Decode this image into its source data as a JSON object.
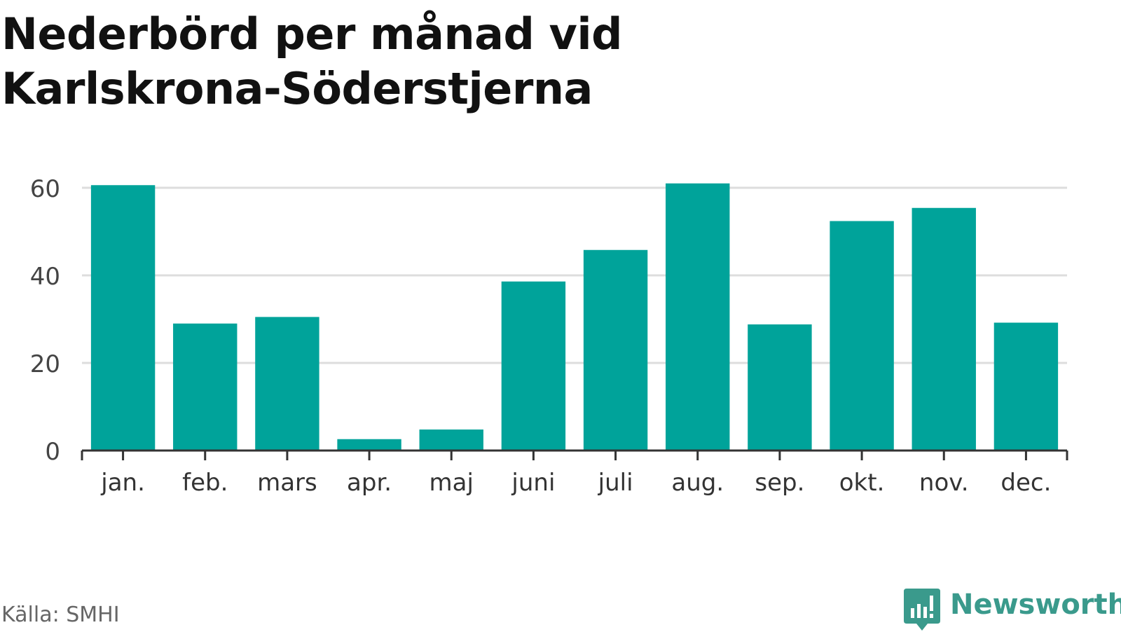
{
  "title_line1": "Nederbörd per månad vid",
  "title_line2": "Karlskrona-Söderstjerna",
  "source": "Källa: SMHI",
  "brand": "Newsworthy",
  "colors": {
    "bar": "#00a39a",
    "grid": "#dddddd",
    "axis": "#333333",
    "brand": "#3a9a8c"
  },
  "chart_data": {
    "type": "bar",
    "categories": [
      "jan.",
      "feb.",
      "mars",
      "apr.",
      "maj",
      "juni",
      "juli",
      "aug.",
      "sep.",
      "okt.",
      "nov.",
      "dec."
    ],
    "values": [
      60.6,
      29.0,
      30.5,
      2.6,
      4.8,
      38.6,
      45.8,
      61.0,
      28.8,
      52.4,
      55.4,
      29.2
    ],
    "yticks": [
      0,
      20,
      40,
      60
    ],
    "ylim": [
      0,
      60
    ],
    "grid": true
  }
}
